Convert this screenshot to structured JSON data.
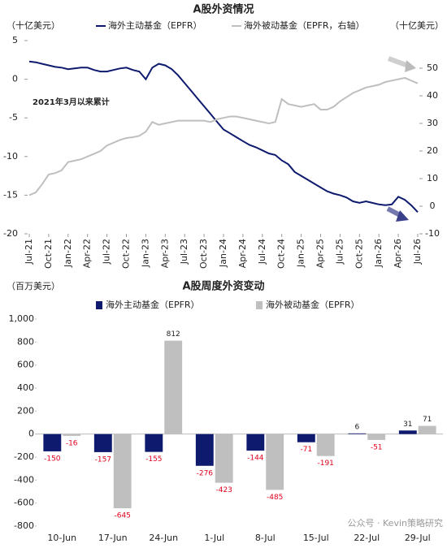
{
  "chart_data": [
    {
      "type": "line",
      "title": "A股外资情况",
      "y_label": "（十亿美元）",
      "y2_label": "（十亿美元）",
      "annotation": "2021年3月以来累计",
      "x": [
        "2021-07",
        "2021-08",
        "2021-09",
        "2021-10",
        "2021-11",
        "2021-12",
        "2022-01",
        "2022-02",
        "2022-03",
        "2022-04",
        "2022-05",
        "2022-06",
        "2022-07",
        "2022-08",
        "2022-09",
        "2022-10",
        "2022-11",
        "2022-12",
        "2023-01",
        "2023-02",
        "2023-03",
        "2023-04",
        "2023-05",
        "2023-06",
        "2023-07",
        "2023-08",
        "2023-09",
        "2023-10",
        "2023-11",
        "2023-12",
        "2024-01",
        "2024-02",
        "2024-03",
        "2024-04",
        "2024-05",
        "2024-06",
        "2024-07",
        "2024-08",
        "2024-09",
        "2024-10",
        "2024-11",
        "2024-12",
        "2025-01",
        "2025-02",
        "2025-03",
        "2025-04",
        "2025-05",
        "2025-06",
        "2025-07",
        "2025-08",
        "2025-09",
        "2025-10",
        "2025-11",
        "2025-12",
        "2026-01",
        "2026-02",
        "2026-03",
        "2026-04",
        "2026-05",
        "2026-06",
        "2026-07"
      ],
      "xticks": [
        {
          "value": "2021-07",
          "label": "Jul-21"
        },
        {
          "value": "2021-10",
          "label": "Oct-21"
        },
        {
          "value": "2022-01",
          "label": "Jan-22"
        },
        {
          "value": "2022-04",
          "label": "Apr-22"
        },
        {
          "value": "2022-07",
          "label": "Jul-22"
        },
        {
          "value": "2022-10",
          "label": "Oct-22"
        },
        {
          "value": "2023-01",
          "label": "Jan-23"
        },
        {
          "value": "2023-04",
          "label": "Apr-23"
        },
        {
          "value": "2023-07",
          "label": "Jul-23"
        },
        {
          "value": "2023-10",
          "label": "Oct-23"
        },
        {
          "value": "2024-01",
          "label": "Jan-24"
        },
        {
          "value": "2024-04",
          "label": "Apr-24"
        },
        {
          "value": "2024-07",
          "label": "Jul-24"
        },
        {
          "value": "2024-10",
          "label": "Oct-24"
        },
        {
          "value": "2025-01",
          "label": "Jan-25"
        },
        {
          "value": "2025-04",
          "label": "Apr-25"
        },
        {
          "value": "2025-07",
          "label": "Jul-25"
        },
        {
          "value": "2025-10",
          "label": "Oct-25"
        },
        {
          "value": "2026-01",
          "label": "Jan-26"
        },
        {
          "value": "2026-04",
          "label": "Apr-26"
        },
        {
          "value": "2026-07",
          "label": "Jul-26"
        }
      ],
      "ylim": [
        -20,
        5
      ],
      "yticks": [
        -20,
        -15,
        -10,
        -5,
        0,
        5
      ],
      "y2lim": [
        -10,
        60
      ],
      "y2ticks": [
        -10,
        0,
        10,
        20,
        30,
        40,
        50
      ],
      "series": [
        {
          "name": "海外主动基金（EPFR）",
          "color": "#0d1a6e",
          "values": [
            2.3,
            2.2,
            2.0,
            1.8,
            1.6,
            1.5,
            1.3,
            1.4,
            1.5,
            1.5,
            1.2,
            1.0,
            1.0,
            1.2,
            1.4,
            1.5,
            1.2,
            1.0,
            0.0,
            1.5,
            2.0,
            1.8,
            1.3,
            0.5,
            -0.5,
            -1.5,
            -2.5,
            -3.5,
            -4.5,
            -5.5,
            -6.5,
            -7.0,
            -7.5,
            -8.0,
            -8.5,
            -8.8,
            -9.2,
            -9.6,
            -9.8,
            -10.5,
            -11.0,
            -12.0,
            -12.5,
            -13.0,
            -13.5,
            -14.0,
            -14.5,
            -14.8,
            -15.0,
            -15.3,
            -15.8,
            -16.0,
            -15.8,
            -16.0,
            -16.2,
            -16.3,
            -16.2,
            -15.2,
            -15.6,
            -16.3,
            -17.2
          ]
        },
        {
          "name": "海外被动基金（EPFR，右轴）",
          "color": "#bfbfbf",
          "axis": "y2",
          "values": [
            4,
            5,
            8,
            11.5,
            12,
            13,
            16,
            16.5,
            17,
            18,
            19,
            20,
            22,
            23,
            24,
            24.7,
            25,
            25.5,
            27,
            30.5,
            29.5,
            30,
            30.5,
            31,
            31,
            31,
            31,
            31,
            30.5,
            31.5,
            32,
            32.5,
            32.5,
            32,
            31.5,
            31,
            30.5,
            30,
            30.5,
            38.8,
            37,
            36.5,
            36,
            36.5,
            37,
            35,
            35,
            36,
            38,
            39.5,
            41,
            42,
            43,
            43.5,
            44,
            45,
            45.5,
            46,
            46.5,
            45.5,
            44.5
          ]
        }
      ]
    },
    {
      "type": "bar",
      "title": "A股周度外资变动",
      "y_label": "（百万美元）",
      "watermark": "公众号 · Kevin策略研究",
      "categories": [
        "10-Jun",
        "17-Jun",
        "24-Jun",
        "1-Jul",
        "8-Jul",
        "15-Jul",
        "22-Jul",
        "29-Jul"
      ],
      "ylim": [
        -800,
        1000
      ],
      "yticks": [
        -800,
        -600,
        -400,
        -200,
        0,
        200,
        400,
        600,
        800,
        {
          "value": 1000,
          "label": "1,000"
        }
      ],
      "series": [
        {
          "name": "海外主动基金（EPFR）",
          "color": "#0d1a6e",
          "values": [
            -150,
            -157,
            -155,
            -276,
            -144,
            -71,
            6,
            31
          ]
        },
        {
          "name": "海外被动基金（EPFR）",
          "color": "#bfbfbf",
          "values": [
            -16,
            -645,
            812,
            -423,
            -485,
            -191,
            -51,
            71
          ]
        }
      ]
    }
  ]
}
